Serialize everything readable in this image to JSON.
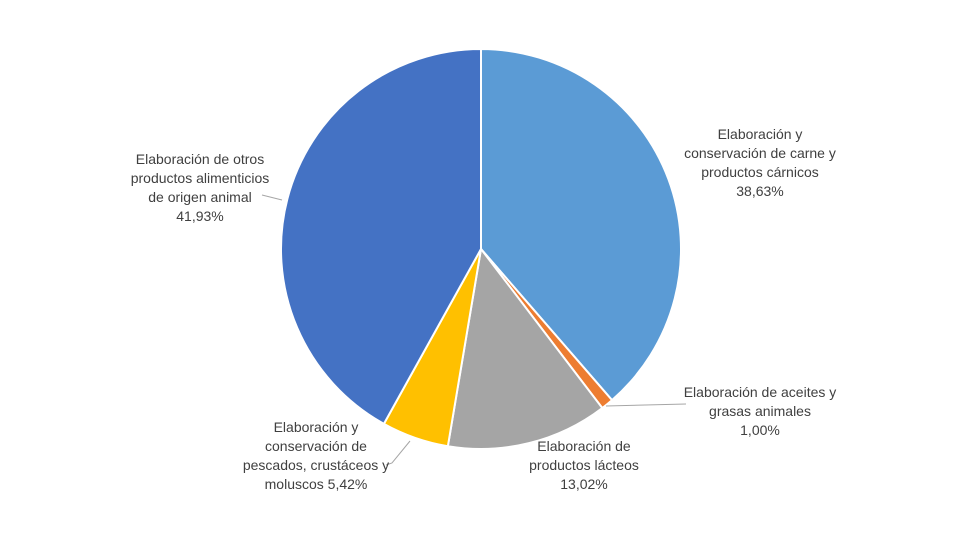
{
  "chart_data": {
    "type": "pie",
    "title": "",
    "slices": [
      {
        "label_lines": [
          "Elaboración y",
          "conservación de carne y",
          "productos cárnicos"
        ],
        "percent_label": "38,63%",
        "value": 38.63,
        "color": "#5B9BD5"
      },
      {
        "label_lines": [
          "Elaboración de aceites y",
          "grasas animales"
        ],
        "percent_label": "1,00%",
        "value": 1.0,
        "color": "#ED7D31"
      },
      {
        "label_lines": [
          "Elaboración de",
          "productos lácteos"
        ],
        "percent_label": "13,02%",
        "value": 13.02,
        "color": "#A5A5A5"
      },
      {
        "label_lines": [
          "Elaboración y",
          "conservación de",
          "pescados, crustáceos y",
          "moluscos  5,42%"
        ],
        "percent_label": "",
        "value": 5.42,
        "color": "#FFC000"
      },
      {
        "label_lines": [
          "Elaboración de otros",
          "productos alimenticios",
          "de origen animal"
        ],
        "percent_label": "41,93%",
        "value": 41.93,
        "color": "#4472C4"
      }
    ]
  }
}
